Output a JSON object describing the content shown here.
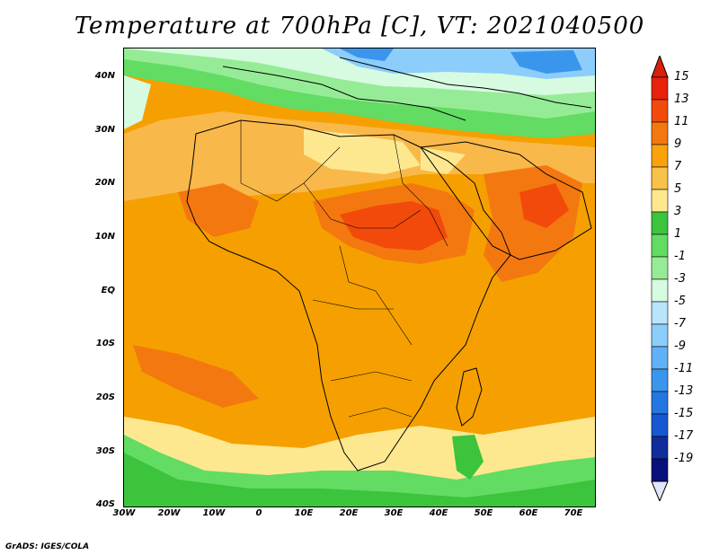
{
  "title": "Temperature at 700hPa [C], VT: 2021040500",
  "credit": "GrADS: IGES/COLA",
  "map": {
    "lon_ticks": [
      "30W",
      "20W",
      "10W",
      "0",
      "10E",
      "20E",
      "30E",
      "40E",
      "50E",
      "60E",
      "70E"
    ],
    "lat_ticks": [
      "40N",
      "30N",
      "20N",
      "10N",
      "EQ",
      "10S",
      "20S",
      "30S",
      "40S"
    ]
  },
  "colorbar": {
    "labels": [
      "15",
      "13",
      "11",
      "9",
      "7",
      "5",
      "3",
      "1",
      "-1",
      "-3",
      "-5",
      "-7",
      "-9",
      "-11",
      "-13",
      "-15",
      "-17",
      "-19"
    ],
    "colors": [
      "#e8210b",
      "#f24a0b",
      "#f47810",
      "#f9a20c",
      "#f7c247",
      "#fde890",
      "#3cc43c",
      "#62dc62",
      "#96ec96",
      "#d6fbe0",
      "#b8e4fc",
      "#8ccdfb",
      "#60b2f6",
      "#3a96ec",
      "#2477e2",
      "#1658d2",
      "#0f2e9c",
      "#07107a"
    ],
    "top_arrow": "#d8200a",
    "bottom_arrow": "#e2e6fc"
  }
}
